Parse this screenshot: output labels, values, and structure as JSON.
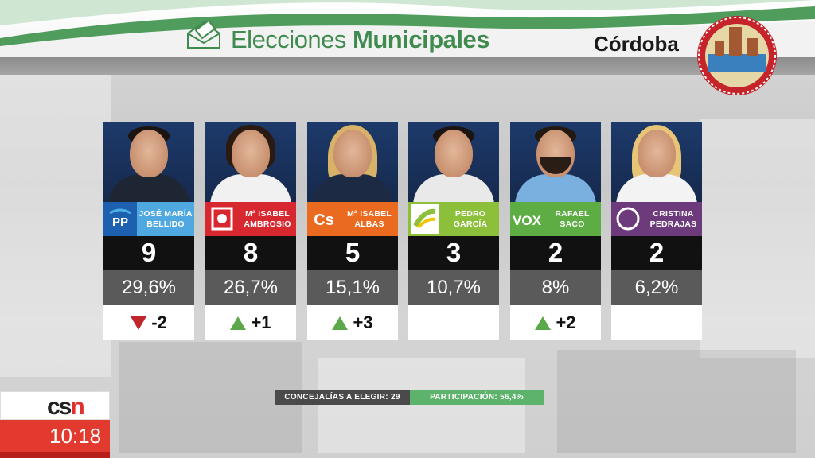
{
  "header": {
    "title_light": "Elecciones",
    "title_bold": "Municipales",
    "city": "Córdoba",
    "colors": {
      "green": "#3f8a4d",
      "accent_green": "#5db36b"
    }
  },
  "candidates": [
    {
      "first": "JOSÉ MARÍA",
      "last": "BELLIDO",
      "party": "PP",
      "seats": "9",
      "percent": "29,6%",
      "change": "-2",
      "direction": "down",
      "color": "#4fa8e0",
      "logo_color": "#1d60b0"
    },
    {
      "first": "Mª ISABEL",
      "last": "AMBROSIO",
      "party": "PSOE",
      "seats": "8",
      "percent": "26,7%",
      "change": "+1",
      "direction": "up",
      "color": "#d7282f",
      "logo_color": "#d7282f"
    },
    {
      "first": "Mª ISABEL",
      "last": "ALBAS",
      "party": "Cs",
      "seats": "5",
      "percent": "15,1%",
      "change": "+3",
      "direction": "up",
      "color": "#ea6a1f",
      "logo_color": "#ea6a1f"
    },
    {
      "first": "PEDRO",
      "last": "GARCÍA",
      "party": "IU",
      "seats": "3",
      "percent": "10,7%",
      "change": "",
      "direction": "none",
      "color": "#8cbf3a",
      "logo_color": "#ffffff"
    },
    {
      "first": "RAFAEL",
      "last": "SACO",
      "party": "VOX",
      "seats": "2",
      "percent": "8%",
      "change": "+2",
      "direction": "up",
      "color": "#5eac44",
      "logo_color": "#5eac44"
    },
    {
      "first": "CRISTINA",
      "last": "PEDRAJAS",
      "party": "Podemos",
      "seats": "2",
      "percent": "6,2%",
      "change": "",
      "direction": "none",
      "color": "#6d3a7c",
      "logo_color": "#6d3a7c"
    }
  ],
  "footer": {
    "concejalias": "CONCEJALÍAS A ELEGIR: 29",
    "participacion": "PARTICIPACIÓN: 56,4%"
  },
  "channel": {
    "logo_c": "cs",
    "logo_n": "n",
    "time": "10:18"
  }
}
